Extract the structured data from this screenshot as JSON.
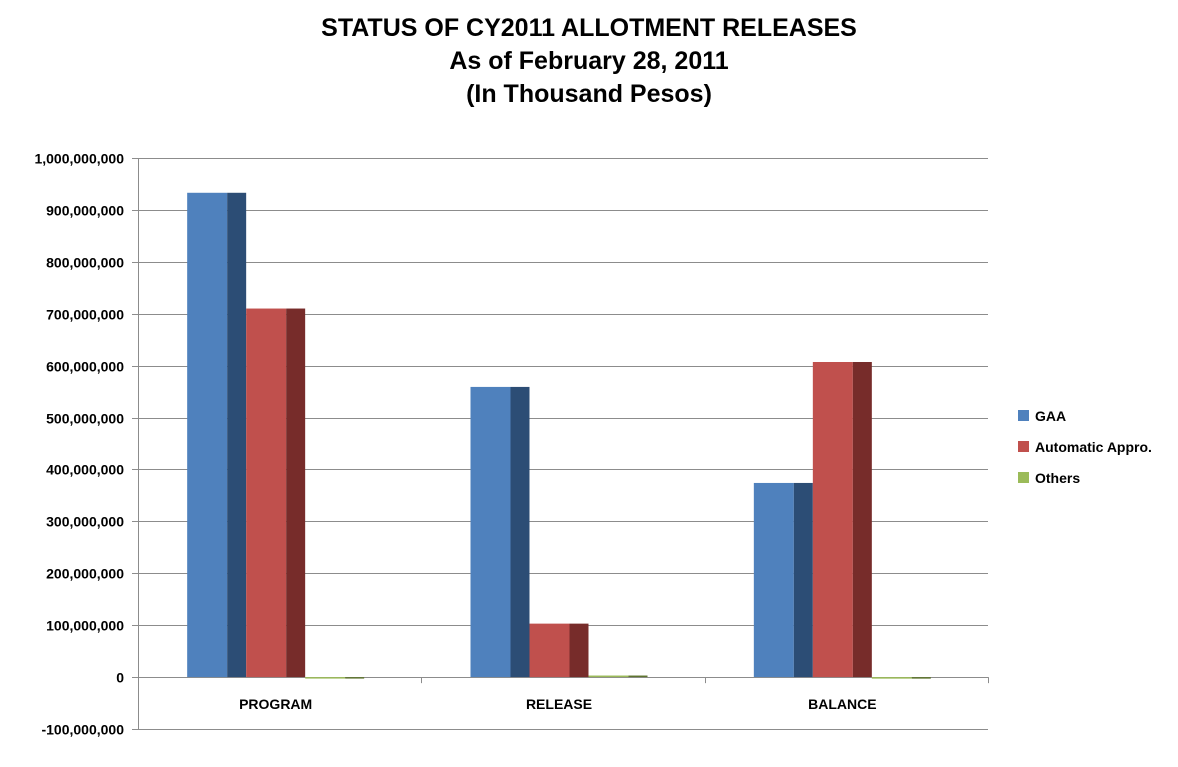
{
  "chart_data": {
    "type": "bar",
    "title": "STATUS OF CY2011 ALLOTMENT RELEASES",
    "subtitle_lines": [
      "As of February 28, 2011",
      "(In Thousand Pesos)"
    ],
    "xlabel": "",
    "ylabel": "",
    "categories": [
      "PROGRAM",
      "RELEASE",
      "BALANCE"
    ],
    "series": [
      {
        "name": "GAA",
        "values": [
          933000000,
          559000000,
          374000000
        ],
        "color": "#4F81BD",
        "side_color": "#2C4D75"
      },
      {
        "name": "Automatic Appro.",
        "values": [
          710000000,
          103000000,
          607000000
        ],
        "color": "#C0504D",
        "side_color": "#772C2A"
      },
      {
        "name": "Others",
        "values": [
          0,
          3000000,
          -3000000
        ],
        "color": "#9BBB59",
        "side_color": "#5F7530"
      }
    ],
    "ylim": [
      -100000000,
      1000000000
    ],
    "yticks": [
      1000000000,
      900000000,
      800000000,
      700000000,
      600000000,
      500000000,
      400000000,
      300000000,
      200000000,
      100000000,
      0,
      -100000000
    ],
    "ytick_labels": [
      "1,000,000,000",
      "900,000,000",
      "800,000,000",
      "700,000,000",
      "600,000,000",
      "500,000,000",
      "400,000,000",
      "300,000,000",
      "200,000,000",
      "100,000,000",
      "0",
      "-100,000,000"
    ],
    "grid": true,
    "legend_position": "right",
    "style": "3d-clustered-column"
  }
}
